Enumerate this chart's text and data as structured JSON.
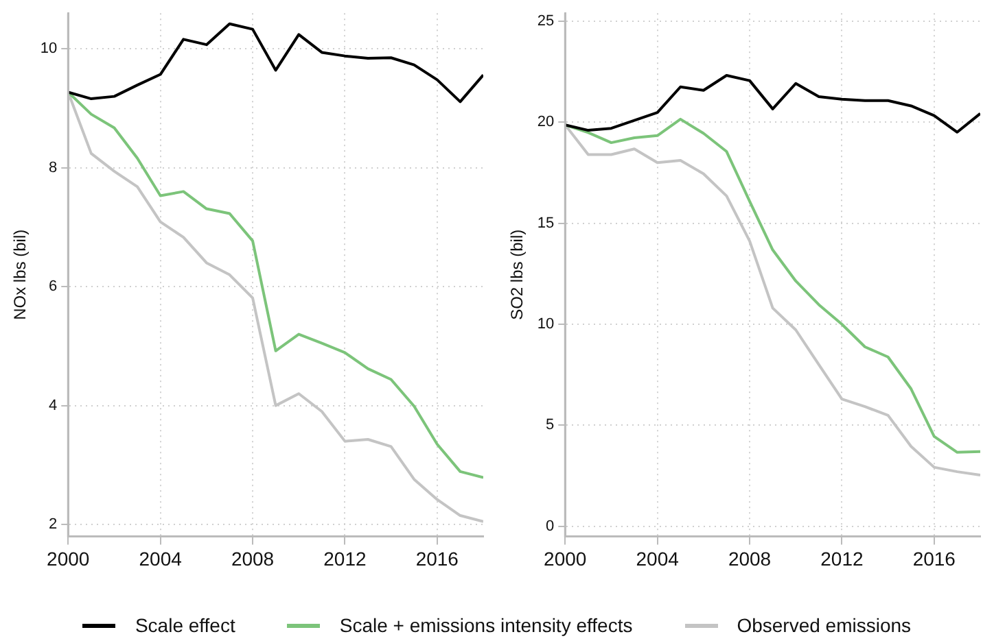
{
  "chart_data": [
    {
      "type": "line",
      "ylabel": "NOx lbs (bil)",
      "x": [
        2000,
        2001,
        2002,
        2003,
        2004,
        2005,
        2006,
        2007,
        2008,
        2009,
        2010,
        2011,
        2012,
        2013,
        2014,
        2015,
        2016,
        2017,
        2018
      ],
      "xlim": [
        2000,
        2018
      ],
      "xticks": [
        2000,
        2004,
        2008,
        2012,
        2016
      ],
      "ylim": [
        1.8,
        10.6
      ],
      "yticks": [
        2,
        4,
        6,
        8,
        10
      ],
      "grid": true,
      "legend": "bottom",
      "series": [
        {
          "name": "Scale effect",
          "color": "#000000",
          "values": [
            9.27,
            9.16,
            9.2,
            9.39,
            9.57,
            10.16,
            10.07,
            10.42,
            10.33,
            9.64,
            10.24,
            9.94,
            9.88,
            9.84,
            9.85,
            9.73,
            9.48,
            9.11,
            9.56
          ]
        },
        {
          "name": "Scale + emissions intensity effects",
          "color": "#7cc47a",
          "values": [
            9.27,
            8.9,
            8.67,
            8.16,
            7.53,
            7.6,
            7.31,
            7.23,
            6.77,
            4.92,
            5.2,
            5.05,
            4.89,
            4.62,
            4.44,
            3.99,
            3.35,
            2.89,
            2.79
          ]
        },
        {
          "name": "Observed emissions",
          "color": "#c4c4c4",
          "values": [
            9.27,
            8.24,
            7.94,
            7.68,
            7.09,
            6.83,
            6.4,
            6.2,
            5.81,
            4.0,
            4.2,
            3.9,
            3.4,
            3.43,
            3.31,
            2.76,
            2.42,
            2.15,
            2.05
          ]
        }
      ]
    },
    {
      "type": "line",
      "ylabel": "SO2 lbs (bil)",
      "x": [
        2000,
        2001,
        2002,
        2003,
        2004,
        2005,
        2006,
        2007,
        2008,
        2009,
        2010,
        2011,
        2012,
        2013,
        2014,
        2015,
        2016,
        2017,
        2018
      ],
      "xlim": [
        2000,
        2018
      ],
      "xticks": [
        2000,
        2004,
        2008,
        2012,
        2016
      ],
      "ylim": [
        -0.5,
        25.4
      ],
      "yticks": [
        0,
        5,
        10,
        15,
        20,
        25
      ],
      "grid": true,
      "series": [
        {
          "name": "Scale effect",
          "color": "#000000",
          "values": [
            19.87,
            19.6,
            19.7,
            20.09,
            20.48,
            21.75,
            21.58,
            22.32,
            22.06,
            20.66,
            21.92,
            21.27,
            21.14,
            21.07,
            21.07,
            20.81,
            20.33,
            19.51,
            20.43
          ]
        },
        {
          "name": "Scale + emissions intensity effects",
          "color": "#7cc47a",
          "values": [
            19.87,
            19.49,
            18.99,
            19.23,
            19.34,
            20.15,
            19.45,
            18.55,
            16.09,
            13.68,
            12.14,
            10.97,
            10.0,
            8.88,
            8.38,
            6.8,
            4.45,
            3.66,
            3.7
          ]
        },
        {
          "name": "Observed emissions",
          "color": "#c4c4c4",
          "values": [
            19.87,
            18.4,
            18.4,
            18.68,
            18.0,
            18.11,
            17.45,
            16.35,
            14.12,
            10.8,
            9.72,
            8.0,
            6.3,
            5.92,
            5.49,
            3.95,
            2.92,
            2.7,
            2.53
          ]
        }
      ]
    }
  ]
}
